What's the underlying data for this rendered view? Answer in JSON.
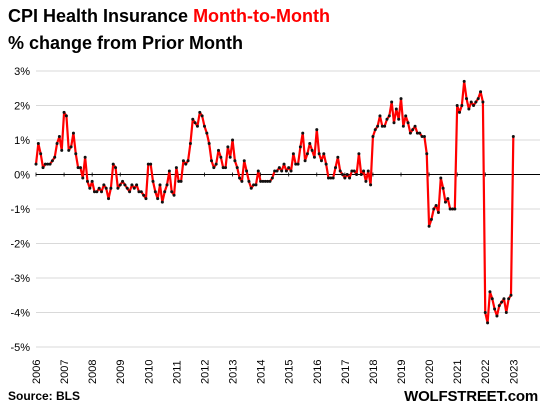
{
  "title": {
    "part1": "CPI Health Insurance ",
    "highlight": "Month-to-Month",
    "line2": "% change from Prior Month"
  },
  "source": "Source: BLS",
  "brand": "WOLFSTREET.com",
  "colors": {
    "line": "#ff0000",
    "marker": "#111111",
    "grid": "#cccccc",
    "highlight": "#ff0000"
  },
  "chart_data": {
    "type": "line",
    "title": "CPI Health Insurance Month-to-Month % change from Prior Month",
    "xlabel": "",
    "ylabel": "",
    "ylim": [
      -5,
      3
    ],
    "xlim": [
      2006,
      2023.95
    ],
    "y_ticks": [
      3,
      2,
      1,
      0,
      -1,
      -2,
      -3,
      -4,
      -5
    ],
    "y_tick_labels": [
      "3%",
      "2%",
      "1%",
      "0%",
      "-1%",
      "-2%",
      "-3%",
      "-4%",
      "-5%"
    ],
    "x_ticks": [
      "2006",
      "2007",
      "2008",
      "2009",
      "2010",
      "2011",
      "2012",
      "2013",
      "2014",
      "2015",
      "2016",
      "2017",
      "2018",
      "2019",
      "2020",
      "2021",
      "2022",
      "2023"
    ],
    "grid": "horizontal",
    "series": [
      {
        "start": "2006-01",
        "frequency": "monthly",
        "unit": "%",
        "values": [
          0.3,
          0.9,
          0.6,
          0.2,
          0.3,
          0.3,
          0.3,
          0.4,
          0.5,
          0.9,
          1.1,
          0.7,
          1.8,
          1.7,
          0.7,
          0.8,
          1.2,
          0.6,
          0.2,
          0.2,
          -0.1,
          0.5,
          -0.2,
          -0.4,
          -0.2,
          -0.5,
          -0.5,
          -0.4,
          -0.5,
          -0.3,
          -0.4,
          -0.7,
          -0.4,
          0.3,
          0.2,
          -0.4,
          -0.3,
          -0.2,
          -0.3,
          -0.4,
          -0.5,
          -0.3,
          -0.4,
          -0.3,
          -0.5,
          -0.5,
          -0.6,
          -0.7,
          0.3,
          0.3,
          -0.2,
          -0.5,
          -0.7,
          -0.3,
          -0.8,
          -0.5,
          -0.3,
          0.1,
          -0.5,
          -0.6,
          0.2,
          -0.2,
          -0.2,
          0.4,
          0.3,
          0.4,
          0.9,
          1.6,
          1.5,
          1.4,
          1.8,
          1.7,
          1.4,
          1.2,
          0.9,
          0.4,
          0.2,
          0.3,
          0.7,
          0.5,
          0.2,
          0.2,
          0.8,
          0.5,
          1.0,
          0.4,
          0.2,
          -0.1,
          -0.2,
          0.4,
          0.1,
          -0.2,
          -0.4,
          -0.3,
          -0.3,
          0.1,
          -0.2,
          -0.2,
          -0.2,
          -0.2,
          -0.2,
          -0.1,
          0.1,
          0.1,
          0.2,
          0.1,
          0.3,
          0.1,
          0.2,
          0.1,
          0.6,
          0.3,
          0.3,
          0.8,
          1.2,
          0.4,
          0.6,
          0.9,
          0.7,
          0.5,
          1.3,
          0.6,
          0.4,
          0.6,
          0.3,
          -0.1,
          -0.1,
          -0.1,
          0.2,
          0.5,
          0.1,
          0.0,
          -0.1,
          0.0,
          -0.1,
          0.1,
          0.1,
          0.0,
          0.6,
          0.0,
          0.1,
          -0.2,
          0.1,
          -0.3,
          1.1,
          1.3,
          1.4,
          1.7,
          1.4,
          1.4,
          1.6,
          1.7,
          2.1,
          1.5,
          1.9,
          1.6,
          2.2,
          1.4,
          1.7,
          1.5,
          1.2,
          1.3,
          1.4,
          1.2,
          1.2,
          1.1,
          1.1,
          0.6,
          -1.5,
          -1.3,
          -1.0,
          -0.9,
          -1.1,
          -0.1,
          -0.4,
          -0.8,
          -0.7,
          -1.0,
          -1.0,
          -1.0,
          2.0,
          1.8,
          2.0,
          2.7,
          2.2,
          1.9,
          2.1,
          2.0,
          2.1,
          2.2,
          2.4,
          2.1,
          -4.0,
          -4.3,
          -3.4,
          -3.6,
          -3.9,
          -4.1,
          -3.8,
          -3.7,
          -3.6,
          -4.0,
          -3.6,
          -3.5,
          1.1
        ]
      }
    ]
  }
}
